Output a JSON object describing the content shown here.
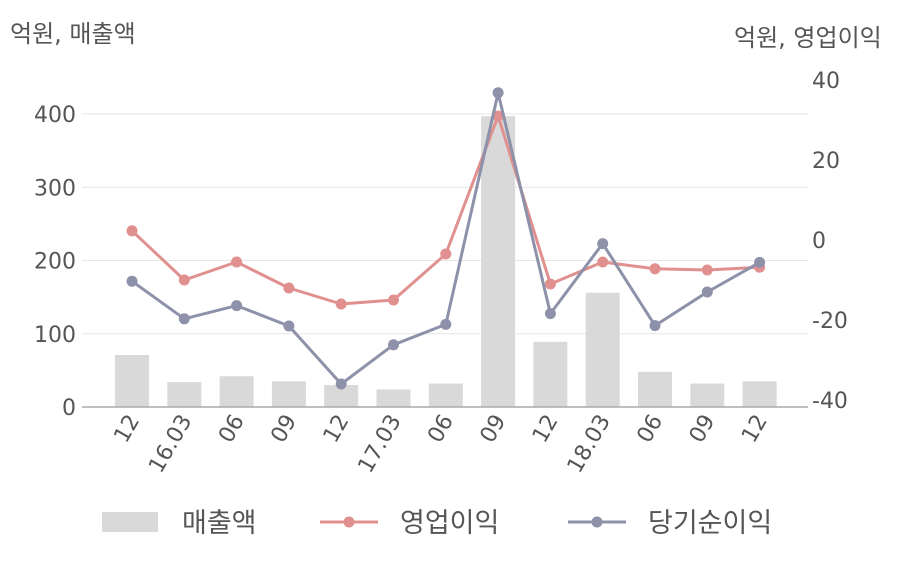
{
  "chart_data": {
    "type": "bar",
    "left_axis_label": "억원, 매출액",
    "right_axis_label": "억원, 영업이익",
    "categories": [
      "12",
      "16.03",
      "06",
      "09",
      "12",
      "17.03",
      "06",
      "09",
      "12",
      "18.03",
      "06",
      "09",
      "12"
    ],
    "left_ylim": [
      0,
      450
    ],
    "left_ticks": [
      0,
      100,
      200,
      300,
      400
    ],
    "right_ylim": [
      -40,
      40
    ],
    "right_ticks": [
      -40,
      -20,
      0,
      20,
      40
    ],
    "grid": true,
    "legend_position": "bottom",
    "series": [
      {
        "name": "매출액",
        "type": "bar",
        "axis": "left",
        "color": "#d9d9d9",
        "values": [
          71,
          34,
          42,
          35,
          30,
          24,
          32,
          397,
          89,
          156,
          48,
          32,
          35
        ]
      },
      {
        "name": "영업이익",
        "type": "line",
        "axis": "right",
        "color": "#e0908f",
        "values": [
          2.3,
          -10,
          -5.5,
          -12,
          -16,
          -15,
          -3.5,
          31,
          -11,
          -5.5,
          -7.2,
          -7.5,
          -6.8
        ]
      },
      {
        "name": "당기순이익",
        "type": "line",
        "axis": "right",
        "color": "#8d91a9",
        "values": [
          -10.3,
          -19.7,
          -16.4,
          -21.5,
          -36,
          -26.2,
          -21.1,
          36.8,
          -18.4,
          -0.9,
          -21.4,
          -13,
          -5.6
        ]
      }
    ]
  }
}
